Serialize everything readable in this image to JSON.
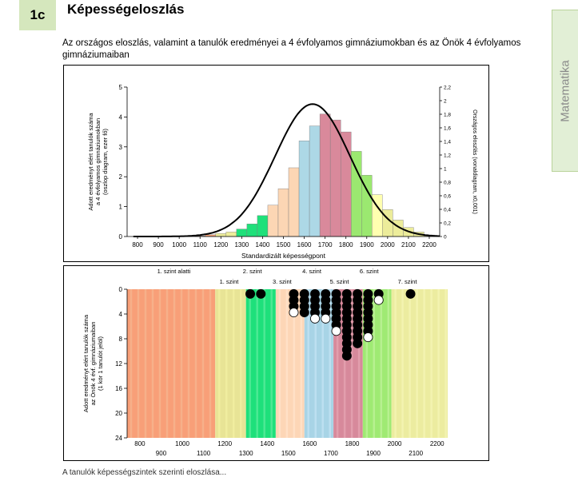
{
  "header": {
    "badge": "1c",
    "title": "Képességeloszlás",
    "description": "Az országos eloszlás, valamint a tanulók eredményei a 4 évfolyamos gimnáziumokban és az Önök 4 évfolyamos gimnáziumaiban",
    "side_tab": "Matematika"
  },
  "footer_text": "A tanulók képességszintek szerinti eloszlása...",
  "chart_data": [
    {
      "type": "bar",
      "xlabel": "Standardizált képességpont",
      "ylabel_left": [
        "Adott eredményt elért tanulók száma",
        "a 4 évfolyamos gimnáziumokban",
        "(oszlop diagram, ezer fő)"
      ],
      "ylabel_right": "Országos eloszlás (vonaldiagram, x0,001)",
      "xlim": [
        750,
        2250
      ],
      "ylim": [
        0,
        5
      ],
      "y2lim": [
        0,
        2.2
      ],
      "x_ticks": [
        800,
        900,
        1000,
        1100,
        1200,
        1300,
        1400,
        1500,
        1600,
        1700,
        1800,
        1900,
        2000,
        2100,
        2200
      ],
      "y_ticks": [
        0,
        1,
        2,
        3,
        4,
        5
      ],
      "y2_ticks": [
        "0",
        "0,2",
        "0,4",
        "0,6",
        "0,8",
        "1",
        "1,2",
        "1,4",
        "1,6",
        "1,8",
        "2",
        "2,2"
      ],
      "bin_width": 50,
      "bars": [
        {
          "x": 1100,
          "value": 0.02,
          "color": "#f4a27a"
        },
        {
          "x": 1150,
          "value": 0.06,
          "color": "#f4a27a"
        },
        {
          "x": 1200,
          "value": 0.1,
          "color": "#ecec9a"
        },
        {
          "x": 1250,
          "value": 0.15,
          "color": "#ecec9a"
        },
        {
          "x": 1300,
          "value": 0.25,
          "color": "#1fe07a"
        },
        {
          "x": 1350,
          "value": 0.42,
          "color": "#1fe07a"
        },
        {
          "x": 1400,
          "value": 0.7,
          "color": "#1fe07a"
        },
        {
          "x": 1450,
          "value": 1.05,
          "color": "#fcd6b4"
        },
        {
          "x": 1500,
          "value": 1.6,
          "color": "#fcd6b4"
        },
        {
          "x": 1550,
          "value": 2.3,
          "color": "#fcd6b4"
        },
        {
          "x": 1600,
          "value": 3.2,
          "color": "#add8e6"
        },
        {
          "x": 1650,
          "value": 3.7,
          "color": "#add8e6"
        },
        {
          "x": 1700,
          "value": 4.1,
          "color": "#d9899b"
        },
        {
          "x": 1750,
          "value": 3.9,
          "color": "#d9899b"
        },
        {
          "x": 1800,
          "value": 3.5,
          "color": "#d9899b"
        },
        {
          "x": 1850,
          "value": 2.85,
          "color": "#9be870"
        },
        {
          "x": 1900,
          "value": 2.05,
          "color": "#9be870"
        },
        {
          "x": 1950,
          "value": 1.4,
          "color": "#ffffb0"
        },
        {
          "x": 2000,
          "value": 0.9,
          "color": "#ecec9a"
        },
        {
          "x": 2050,
          "value": 0.55,
          "color": "#ecec9a"
        },
        {
          "x": 2100,
          "value": 0.3,
          "color": "#ecec9a"
        },
        {
          "x": 2150,
          "value": 0.15,
          "color": "#ecec9a"
        },
        {
          "x": 2200,
          "value": 0.05,
          "color": "#ecec9a"
        }
      ],
      "curve": {
        "mean": 1640,
        "sd": 180,
        "peak": 1.95
      }
    },
    {
      "type": "scatter",
      "ylabel": [
        "Adott eredményt elért tanulók száma",
        "az Önök 4 évf. gimnáziumaiban",
        "(1 kör 1 tanulót jelöl)"
      ],
      "xlim": [
        740,
        2250
      ],
      "ylim": [
        0,
        24
      ],
      "y_ticks": [
        0,
        4,
        8,
        12,
        16,
        20,
        24
      ],
      "x_ticks_upper": [
        800,
        1000,
        1200,
        1400,
        1600,
        1800,
        2000,
        2200
      ],
      "x_ticks_lower": [
        900,
        1100,
        1300,
        1500,
        1700,
        1900,
        2100
      ],
      "level_labels_upper": [
        {
          "text": "1. szint alatti",
          "x": 960
        },
        {
          "text": "2. szint",
          "x": 1330
        },
        {
          "text": "4. szint",
          "x": 1610
        },
        {
          "text": "6. szint",
          "x": 1880
        }
      ],
      "level_labels_lower": [
        {
          "text": "1. szint",
          "x": 1220
        },
        {
          "text": "3. szint",
          "x": 1470
        },
        {
          "text": "5. szint",
          "x": 1740
        },
        {
          "text": "7. szint",
          "x": 2060
        }
      ],
      "bands": [
        {
          "from": 740,
          "to": 1155,
          "color": "#f89f78",
          "stripe": "#f6b08a"
        },
        {
          "from": 1155,
          "to": 1300,
          "color": "#e8e496",
          "stripe": "#f0ed9f"
        },
        {
          "from": 1300,
          "to": 1440,
          "color": "#1ee07b",
          "stripe": "#4ce994"
        },
        {
          "from": 1440,
          "to": 1575,
          "color": "#fdd6b6",
          "stripe": "#ffe0c6"
        },
        {
          "from": 1575,
          "to": 1712,
          "color": "#a8d4e6",
          "stripe": "#bddff0"
        },
        {
          "from": 1712,
          "to": 1850,
          "color": "#d7899b",
          "stripe": "#e29ead"
        },
        {
          "from": 1850,
          "to": 1985,
          "color": "#9fea73",
          "stripe": "#b7f090"
        },
        {
          "from": 1985,
          "to": 2250,
          "color": "#ececa0",
          "stripe": "#f3f3b0"
        }
      ],
      "columns": [
        {
          "x": 1320,
          "count": 1,
          "hollow_top": false
        },
        {
          "x": 1370,
          "count": 1,
          "hollow_top": false
        },
        {
          "x": 1525,
          "count": 4,
          "hollow_top": true
        },
        {
          "x": 1575,
          "count": 4,
          "hollow_top": false
        },
        {
          "x": 1625,
          "count": 5,
          "hollow_top": true
        },
        {
          "x": 1675,
          "count": 5,
          "hollow_top": true
        },
        {
          "x": 1725,
          "count": 7,
          "hollow_top": true
        },
        {
          "x": 1775,
          "count": 11,
          "hollow_top": false
        },
        {
          "x": 1825,
          "count": 9,
          "hollow_top": false
        },
        {
          "x": 1875,
          "count": 8,
          "hollow_top": true
        },
        {
          "x": 1925,
          "count": 2,
          "hollow_top": true
        },
        {
          "x": 2075,
          "count": 1,
          "hollow_top": false
        }
      ]
    }
  ]
}
